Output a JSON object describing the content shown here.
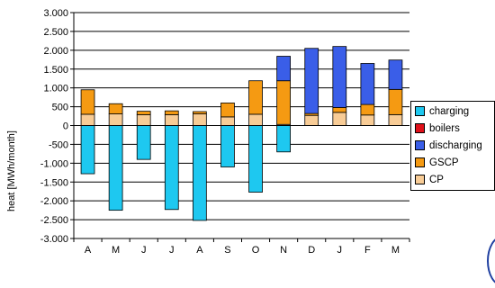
{
  "chart_data": {
    "type": "bar",
    "stacked": true,
    "ylabel": "heat [MWh/month]",
    "xlabel": "",
    "title": "",
    "ylim": [
      -3000,
      3000
    ],
    "ytick_step": 500,
    "ytick_labels": [
      "3.000",
      "2.500",
      "2.000",
      "1.500",
      "1.000",
      "500",
      "0",
      "-500",
      "-1.000",
      "-1.500",
      "-2.000",
      "-2.500",
      "-3.000"
    ],
    "categories": [
      "A",
      "M",
      "J",
      "J",
      "A",
      "S",
      "O",
      "N",
      "D",
      "J",
      "F",
      "M"
    ],
    "grid": true,
    "legend_position": "right",
    "series": [
      {
        "name": "charging",
        "color": "#1ec8f0",
        "values": [
          -1280,
          -2250,
          -900,
          -2230,
          -2520,
          -1100,
          -1770,
          -700,
          0,
          0,
          0,
          0
        ]
      },
      {
        "name": "boilers",
        "color": "#e0101a",
        "values": [
          0,
          0,
          0,
          0,
          0,
          0,
          0,
          0,
          0,
          0,
          0,
          0
        ]
      },
      {
        "name": "discharging",
        "color": "#3a5ee8",
        "values": [
          0,
          0,
          0,
          0,
          0,
          0,
          0,
          650,
          1730,
          1620,
          1090,
          780
        ]
      },
      {
        "name": "GSCP",
        "color": "#f59a12",
        "values": [
          650,
          270,
          90,
          100,
          60,
          370,
          890,
          1160,
          50,
          130,
          280,
          670
        ]
      },
      {
        "name": "CP",
        "color": "#f8cc96",
        "values": [
          300,
          310,
          290,
          290,
          310,
          230,
          300,
          30,
          270,
          350,
          280,
          290
        ]
      }
    ],
    "legend_order": [
      "charging",
      "boilers",
      "discharging",
      "GSCP",
      "CP"
    ]
  }
}
